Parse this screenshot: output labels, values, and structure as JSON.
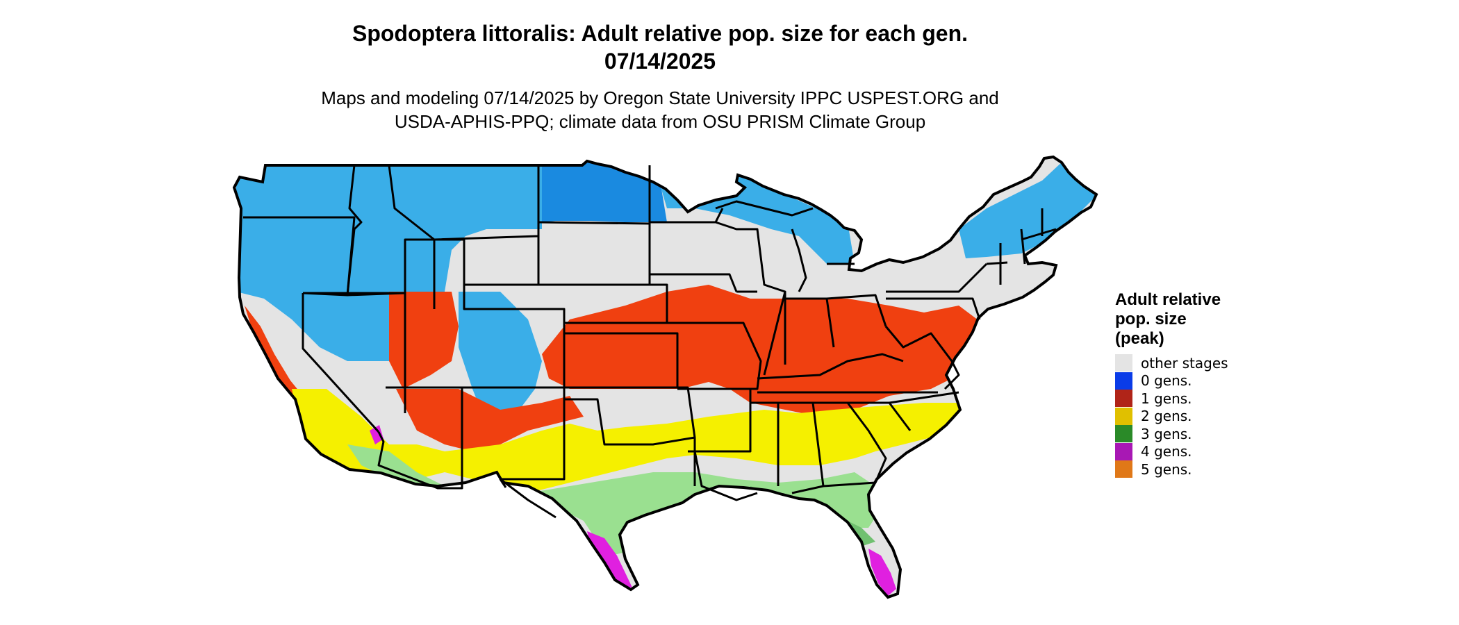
{
  "map": {
    "title_line1": "Spodoptera littoralis: Adult relative pop. size for each gen.",
    "title_line2": "07/14/2025",
    "subtitle_line1": "Maps and modeling 07/14/2025 by Oregon State University IPPC USPEST.ORG and",
    "subtitle_line2": "USDA-APHIS-PPQ; climate data from OSU PRISM Climate Group",
    "region": "Contiguous United States",
    "colors": {
      "other_stages": "#e4e4e4",
      "light_blue": "#3aaee8",
      "mid_blue": "#1a8ae0",
      "orange_red": "#f04010",
      "yellow": "#f5f000",
      "light_green": "#9ae090",
      "green": "#70c070",
      "magenta": "#e020e0",
      "border": "#000000"
    }
  },
  "legend": {
    "title_line1": "Adult relative",
    "title_line2": "pop. size",
    "title_line3": "(peak)",
    "items": [
      {
        "label": "other stages",
        "color": "#e4e4e4"
      },
      {
        "label": "0 gens.",
        "color": "#0a3ce8"
      },
      {
        "label": "1 gens.",
        "color": "#b02418"
      },
      {
        "label": "2 gens.",
        "color": "#e0c000"
      },
      {
        "label": "3 gens.",
        "color": "#2a8a28"
      },
      {
        "label": "4 gens.",
        "color": "#a818b4"
      },
      {
        "label": "5 gens.",
        "color": "#e07818"
      }
    ]
  }
}
